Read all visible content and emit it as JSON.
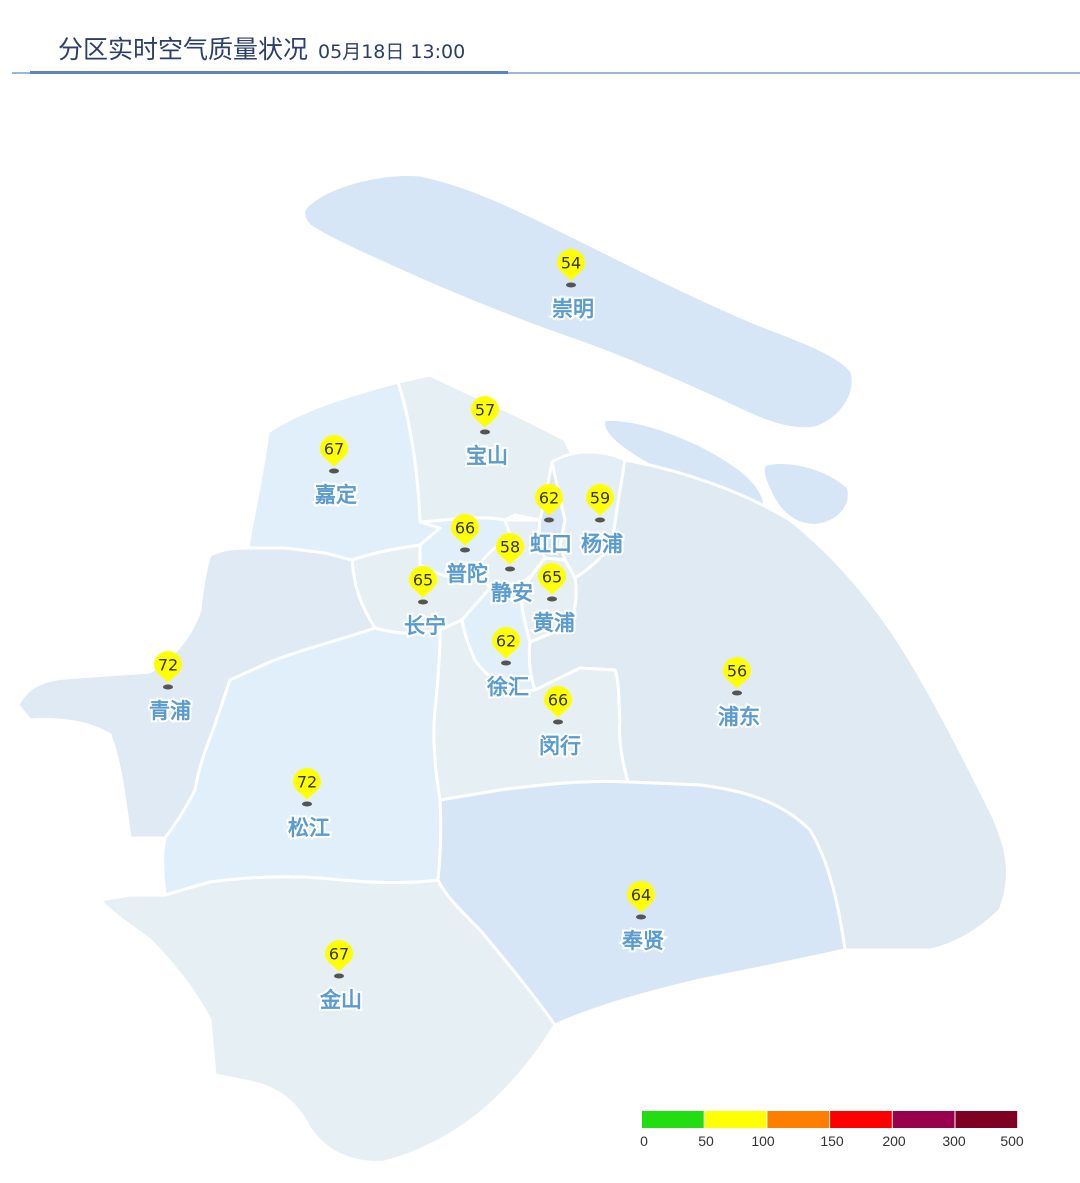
{
  "header": {
    "title": "分区实时空气质量状况",
    "timestamp": "05月18日 13:00"
  },
  "districts": [
    {
      "id": "chongming",
      "name": "崇明",
      "aqi": "54",
      "color": "#d6e6f6"
    },
    {
      "id": "baoshan",
      "name": "宝山",
      "aqi": "57",
      "color": "#e6eff4"
    },
    {
      "id": "jiading",
      "name": "嘉定",
      "aqi": "67",
      "color": "#e0eff9"
    },
    {
      "id": "hongkou",
      "name": "虹口",
      "aqi": "62",
      "color": "#d6e6f6"
    },
    {
      "id": "yangpu",
      "name": "杨浦",
      "aqi": "59",
      "color": "#e3eef6"
    },
    {
      "id": "putuo",
      "name": "普陀",
      "aqi": "66",
      "color": "#e0eff9"
    },
    {
      "id": "jingan",
      "name": "静安",
      "aqi": "58",
      "color": "#e6eff4"
    },
    {
      "id": "huangpu",
      "name": "黄浦",
      "aqi": "65",
      "color": "#e6eff4"
    },
    {
      "id": "changning",
      "name": "长宁",
      "aqi": "65",
      "color": "#e6eff4"
    },
    {
      "id": "xuhui",
      "name": "徐汇",
      "aqi": "62",
      "color": "#e0eff9"
    },
    {
      "id": "qingpu",
      "name": "青浦",
      "aqi": "72",
      "color": "#dfeaf4"
    },
    {
      "id": "pudong",
      "name": "浦东",
      "aqi": "56",
      "color": "#dfeaf2"
    },
    {
      "id": "minhang",
      "name": "闵行",
      "aqi": "66",
      "color": "#e6eff4"
    },
    {
      "id": "songjiang",
      "name": "松江",
      "aqi": "72",
      "color": "#e0eff9"
    },
    {
      "id": "fengxian",
      "name": "奉贤",
      "aqi": "64",
      "color": "#d6e6f6"
    },
    {
      "id": "jinshan",
      "name": "金山",
      "aqi": "67",
      "color": "#e6eff4"
    }
  ],
  "legend": {
    "bands": [
      {
        "from": 0,
        "to": 50,
        "color": "#22dd11"
      },
      {
        "from": 50,
        "to": 100,
        "color": "#ffff00"
      },
      {
        "from": 100,
        "to": 150,
        "color": "#ff7e00"
      },
      {
        "from": 150,
        "to": 200,
        "color": "#ff0000"
      },
      {
        "from": 200,
        "to": 300,
        "color": "#99004c"
      },
      {
        "from": 300,
        "to": 500,
        "color": "#7e0023"
      }
    ],
    "ticks": [
      "0",
      "50",
      "100",
      "150",
      "200",
      "300",
      "500"
    ]
  },
  "marker_color": "#ffff00"
}
